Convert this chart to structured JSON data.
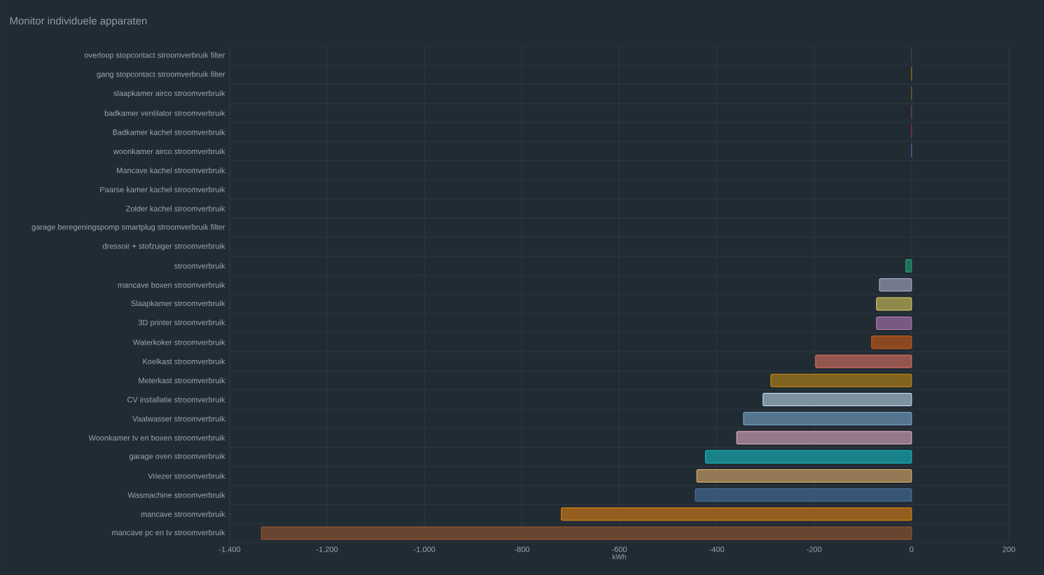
{
  "chart_data": {
    "type": "bar",
    "orientation": "horizontal",
    "title": "Monitor individuele apparaten",
    "xlabel": "kWh",
    "categories": [
      "overloop stopcontact stroomverbruik filter",
      "gang stopcontact stroomverbruik filter",
      "slaapkamer airco stroomverbruik",
      "badkamer ventilator stroomverbruik",
      "Badkamer kachel stroomverbruik",
      "woonkamer airco stroomverbruik",
      "Mancave kachel stroomverbruik",
      "Paarse kamer kachel stroomverbruik",
      "Zolder kachel stroomverbruik",
      "garage beregeningspomp smartplug stroomverbruik filter",
      "dressoir + stofzuiger stroomverbruik",
      "stroomverbruik",
      "mancave boxen stroomverbruik",
      "Slaapkamer stroomverbruik",
      "3D printer stroomverbruik",
      "Waterkoker stroomverbruik",
      "Koelkast stroomverbruik",
      "Meterkast stroomverbruik",
      "CV installatie stroomverbruik",
      "Vaatwasser stroomverbruik",
      "Woonkamer tv en boxen stroomverbruik",
      "garage oven stroomverbruik",
      "Vriezer stroomverbruik",
      "Wasmachine stroomverbruik",
      "mancave stroomverbruik",
      "mancave pc en tv stroomverbruik"
    ],
    "values": [
      0,
      0,
      0,
      0,
      0,
      0,
      null,
      null,
      null,
      null,
      null,
      -12,
      -66,
      -72,
      -72,
      -82,
      -197,
      -289,
      -305,
      -345,
      -359,
      -423,
      -441,
      -444,
      -719,
      -1335
    ],
    "colors": [
      "#4a4a3a",
      "#b8860b",
      "#8b7a1a",
      "#7a4a8a",
      "#b0305a",
      "#6a70c8",
      "#888888",
      "#888888",
      "#888888",
      "#888888",
      "#888888",
      "#1fa87a",
      "#b8b8d8",
      "#e8d860",
      "#c080c0",
      "#e06010",
      "#f07868",
      "#d09010",
      "#c8e4f8",
      "#80b0d8",
      "#f0b8d0",
      "#10c8d0",
      "#f0b870",
      "#4a78a8",
      "#f08a10",
      "#a05a30"
    ],
    "xlim": [
      -1400,
      200
    ],
    "xticks": [
      {
        "value": -1400,
        "label": "-1.400"
      },
      {
        "value": -1200,
        "label": "-1.200"
      },
      {
        "value": -1000,
        "label": "-1.000"
      },
      -800,
      -600,
      -400,
      -200,
      0,
      200
    ],
    "grid": true
  }
}
